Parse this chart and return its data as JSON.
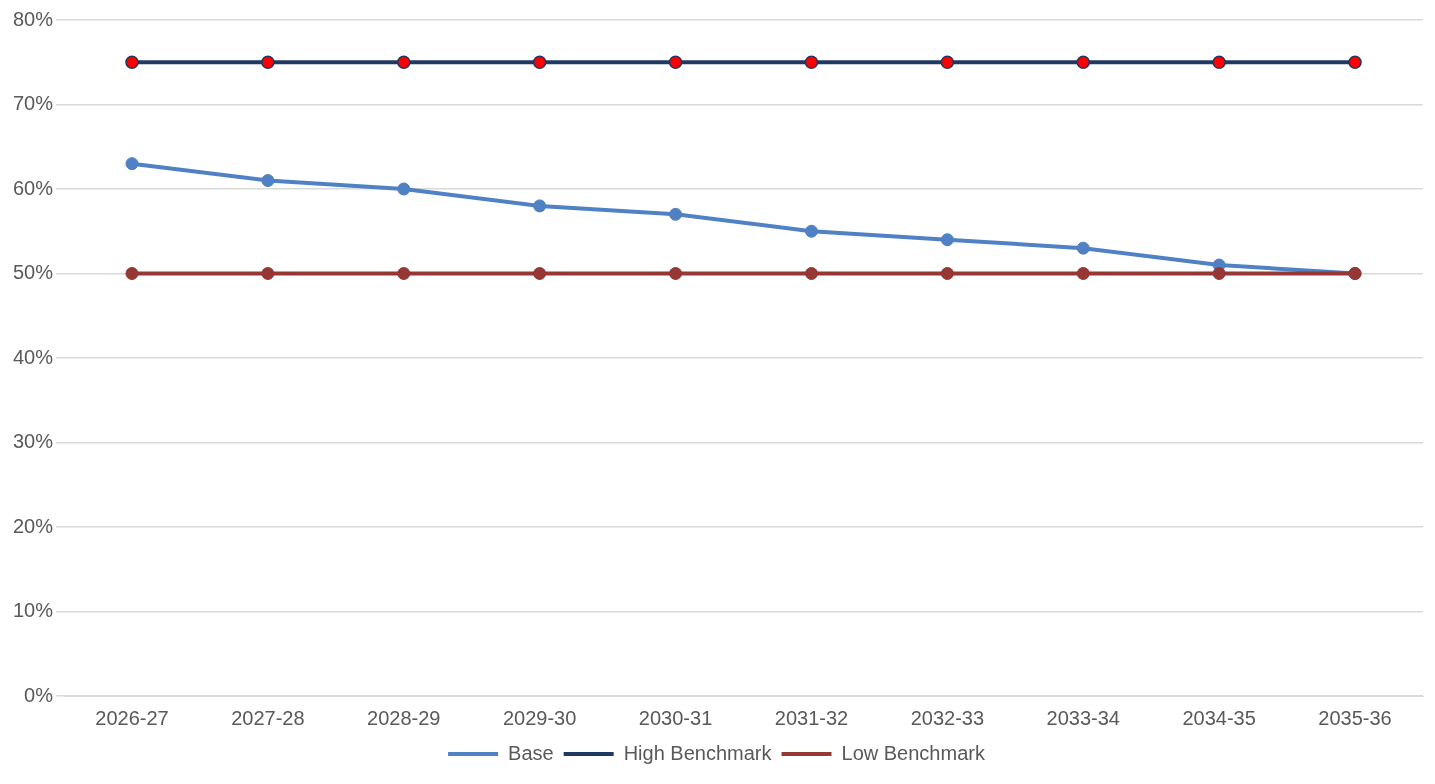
{
  "chart_data": {
    "type": "line",
    "categories": [
      "2026-27",
      "2027-28",
      "2028-29",
      "2029-30",
      "2030-31",
      "2031-32",
      "2032-33",
      "2033-34",
      "2034-35",
      "2035-36"
    ],
    "series": [
      {
        "name": "Base",
        "color": "#4f81c4",
        "values": [
          63,
          61,
          60,
          58,
          57,
          55,
          54,
          53,
          51,
          50
        ]
      },
      {
        "name": "High Benchmark",
        "color": "#1f3864",
        "colors": [
          "#ff0000",
          "#ff0000",
          "#ff0000",
          "#ff0000",
          "#ff0000",
          "#ff0000",
          "#ff0000",
          "#ff0000",
          "#ff0000",
          "#ff0000"
        ],
        "values": [
          75,
          75,
          75,
          75,
          75,
          75,
          75,
          75,
          75,
          75
        ]
      },
      {
        "name": "Low Benchmark",
        "color": "#953735",
        "values": [
          50,
          50,
          50,
          50,
          50,
          50,
          50,
          50,
          50,
          50
        ]
      }
    ],
    "ylim": [
      0,
      80
    ],
    "yticks": [
      {
        "value": 0,
        "label": "0%"
      },
      {
        "value": 10,
        "label": "10%"
      },
      {
        "value": 20,
        "label": "20%"
      },
      {
        "value": 30,
        "label": "30%"
      },
      {
        "value": 40,
        "label": "40%"
      },
      {
        "value": 50,
        "label": "50%"
      },
      {
        "value": 60,
        "label": "60%"
      },
      {
        "value": 70,
        "label": "70%"
      },
      {
        "value": 80,
        "label": "80%"
      }
    ],
    "grid": "y",
    "legend": "bottom",
    "marker": "circle",
    "line_style": "solid"
  }
}
